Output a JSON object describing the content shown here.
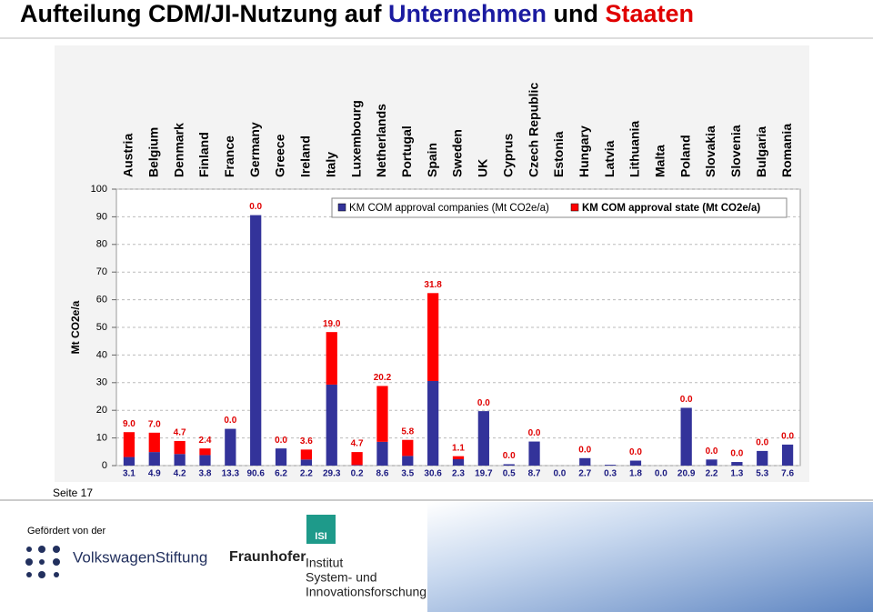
{
  "slide": {
    "title_parts": [
      "Aufteilung CDM/JI-Nutzung auf",
      "Unternehmen",
      "und",
      "Staaten"
    ],
    "page": "Seite 17",
    "funded_by": "Gefördert von der",
    "logos": [
      "VolkswagenStiftung",
      "Fraunhofer",
      "ISI",
      "Institut",
      "System- und",
      "Innovationsforschung"
    ]
  },
  "chart_data": {
    "type": "stacked_bar",
    "y_label": "Mt CO2e/a",
    "categories": [
      "Austria",
      "Belgium",
      "Denmark",
      "Finland",
      "France",
      "Germany",
      "Greece",
      "Ireland",
      "Italy",
      "Luxembourg",
      "Netherlands",
      "Portugal",
      "Spain",
      "Sweden",
      "UK",
      "Cyprus",
      "Czech Republic",
      "Estonia",
      "Hungary",
      "Latvia",
      "Lithuania",
      "Malta",
      "Poland",
      "Slovakia",
      "Slovenia",
      "Bulgaria",
      "Romania"
    ],
    "series": [
      {
        "name": "KM COM approval companies (Mt CO2e/a)",
        "color": "#33339a",
        "values": [
          3.1,
          4.9,
          4.2,
          3.8,
          13.3,
          90.6,
          6.2,
          2.2,
          29.3,
          0.2,
          8.6,
          3.5,
          30.6,
          2.3,
          19.7,
          0.5,
          8.7,
          0.0,
          2.7,
          0.3,
          1.8,
          0.0,
          20.9,
          2.2,
          1.3,
          5.3,
          7.6
        ],
        "value_labels": [
          "3.1",
          "4.9",
          "4.2",
          "3.8",
          "13.3",
          "90.6",
          "6.2",
          "2.2",
          "29.3",
          "0.2",
          "8.6",
          "3.5",
          "30.6",
          "2.3",
          "19.7",
          "0.5",
          "8.7",
          "0.0",
          "2.7",
          "0.3",
          "1.8",
          "0.0",
          "20.9",
          "2.2",
          "1.3",
          "5.3",
          "7.6"
        ]
      },
      {
        "name": "KM COM approval state (Mt CO2e/a)",
        "color": "#ff0000",
        "values": [
          9.0,
          7.0,
          4.7,
          2.4,
          0.0,
          0.0,
          0.0,
          3.6,
          19.0,
          4.7,
          20.2,
          5.8,
          31.8,
          1.1,
          0.0,
          0.0,
          0.0,
          null,
          0.0,
          null,
          0.0,
          null,
          0.0,
          0.0,
          0.0,
          0.0,
          0.0
        ],
        "value_labels": [
          "9.0",
          "7.0",
          "4.7",
          "2.4",
          "0.0",
          "0.0",
          "0.0",
          "3.6",
          "19.0",
          "4.7",
          "20.2",
          "5.8",
          "31.8",
          "1.1",
          "0.0",
          "0.0",
          "0.0",
          null,
          "0.0",
          null,
          "0.0",
          null,
          "0.0",
          "0.0",
          "0.0",
          "0.0",
          "0.0"
        ]
      }
    ],
    "ylim": [
      0,
      100
    ],
    "yticks": [
      0,
      10,
      20,
      30,
      40,
      50,
      60,
      70,
      80,
      90,
      100
    ],
    "grid": true
  }
}
